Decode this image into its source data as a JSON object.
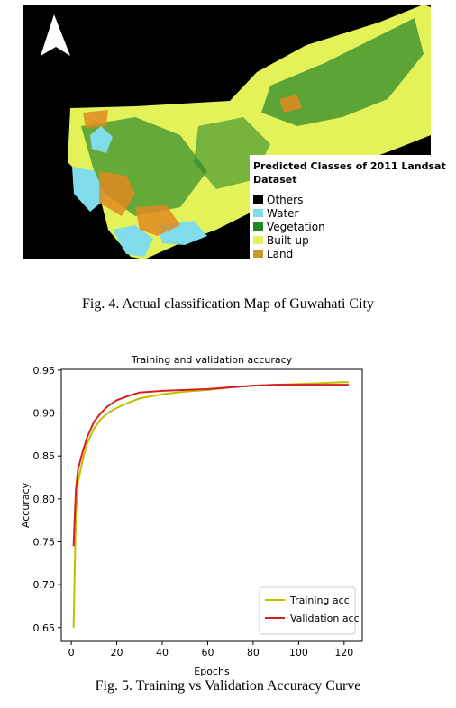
{
  "map": {
    "legend": {
      "title": "Predicted Classes of 2011 Landsat Dataset",
      "items": [
        "Others",
        "Water",
        "Vegetation",
        "Built-up",
        "Land"
      ]
    }
  },
  "figure4_caption": "Fig. 4. Actual classification Map of Guwahati City",
  "chart_data": {
    "type": "line",
    "title": "Training and validation accuracy",
    "x_label": "Epochs",
    "y_label": "Accuracy",
    "x": [
      1,
      2,
      3,
      5,
      7,
      10,
      13,
      16,
      20,
      25,
      30,
      40,
      50,
      60,
      70,
      80,
      90,
      100,
      110,
      120,
      122
    ],
    "series": [
      {
        "name": "Training acc",
        "color": "#bfbf00",
        "values": [
          0.65,
          0.78,
          0.82,
          0.845,
          0.865,
          0.882,
          0.893,
          0.9,
          0.906,
          0.912,
          0.917,
          0.922,
          0.925,
          0.927,
          0.93,
          0.932,
          0.933,
          0.934,
          0.935,
          0.936,
          0.936
        ]
      },
      {
        "name": "Validation acc",
        "color": "#d62020",
        "values": [
          0.745,
          0.81,
          0.835,
          0.855,
          0.872,
          0.89,
          0.9,
          0.908,
          0.915,
          0.92,
          0.924,
          0.926,
          0.927,
          0.928,
          0.93,
          0.932,
          0.933,
          0.933,
          0.933,
          0.933,
          0.933
        ]
      }
    ],
    "xlim": [
      -4.4,
      128
    ],
    "ylim": [
      0.634,
      0.951
    ],
    "xticks": [
      0,
      20,
      40,
      60,
      80,
      100,
      120
    ],
    "yticks": [
      0.65,
      {
        "value": 0.7,
        "label": "0.70"
      },
      0.75,
      {
        "value": 0.8,
        "label": "0.80"
      },
      0.85,
      {
        "value": 0.9,
        "label": "0.90"
      },
      0.95
    ],
    "legend": "lower right"
  },
  "figure5_caption": "Fig. 5. Training vs Validation Accuracy Curve"
}
